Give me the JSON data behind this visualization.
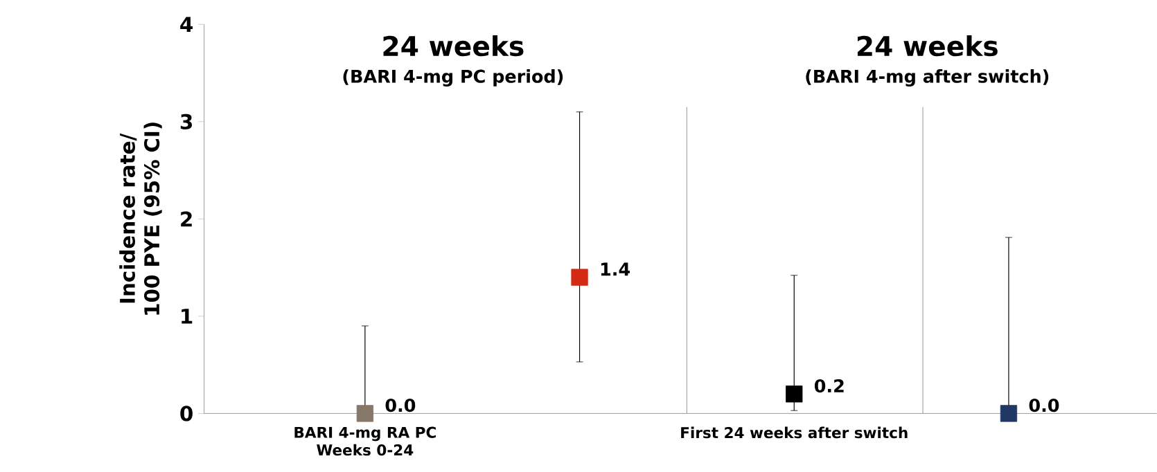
{
  "chart_data": {
    "type": "scatter",
    "ylabel": "Incidence rate/ 100 PYE (95% CI)",
    "annotations": [
      "24 weeks",
      "(BARI 4-mg PC period)",
      "24 weeks",
      "(BARI 4-mg after switch)"
    ],
    "categories": [
      "BARI 4-mg RA PC Weeks 0-24",
      null,
      "First 24 weeks after switch",
      null
    ],
    "values": [
      0.0,
      1.4,
      0.2,
      0.0
    ],
    "errors": [
      [
        0,
        0.9
      ],
      [
        0.53,
        3.1
      ],
      [
        0.03,
        1.42
      ],
      [
        0,
        1.81
      ]
    ],
    "value_labels": [
      "0.0",
      "1.4",
      "0.2",
      "0.0"
    ],
    "colors": [
      "#857769",
      "#d42a14",
      "#000000",
      "#1f3864"
    ],
    "marker": "square",
    "ylim": [
      0,
      4
    ],
    "yticks": [
      0,
      1,
      2,
      3,
      4
    ],
    "grid": false
  }
}
